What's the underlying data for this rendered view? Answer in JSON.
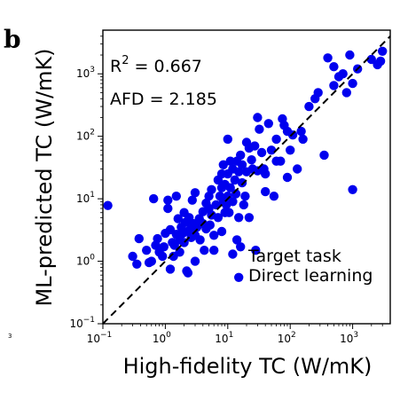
{
  "panel_label": "b",
  "edge_mark": "3",
  "chart_data": {
    "type": "scatter",
    "xlabel": "High-fidelity TC (W/mK)",
    "ylabel": "ML-predicted TC (W/mK)",
    "x_scale": "log",
    "y_scale": "log",
    "xlim": [
      0.1,
      4000
    ],
    "ylim": [
      0.1,
      5000
    ],
    "ticks": [
      {
        "base": "10",
        "exp": "−1",
        "value": 0.1
      },
      {
        "base": "10",
        "exp": "0",
        "value": 1
      },
      {
        "base": "10",
        "exp": "1",
        "value": 10
      },
      {
        "base": "10",
        "exp": "2",
        "value": 100
      },
      {
        "base": "10",
        "exp": "3",
        "value": 1000
      }
    ],
    "grid": false,
    "reference_line": "y = x",
    "annotations": {
      "r2_prefix": "R",
      "r2_exp": "2",
      "r2_value": " = 0.667",
      "afd": "AFD = 2.185"
    },
    "legend": {
      "placement": "lower-right",
      "line1": "Target task",
      "line2": "Direct learning"
    },
    "series": [
      {
        "color": "#0000ee",
        "points": [
          [
            0.12,
            7.8
          ],
          [
            0.3,
            1.2
          ],
          [
            0.35,
            0.9
          ],
          [
            0.38,
            2.3
          ],
          [
            0.5,
            1.5
          ],
          [
            0.55,
            0.95
          ],
          [
            0.6,
            1.0
          ],
          [
            0.65,
            10.0
          ],
          [
            0.7,
            1.8
          ],
          [
            0.75,
            2.3
          ],
          [
            0.8,
            1.4
          ],
          [
            0.9,
            1.2
          ],
          [
            0.95,
            1.7
          ],
          [
            1.0,
            2.8
          ],
          [
            1.1,
            9.5
          ],
          [
            1.1,
            7.0
          ],
          [
            1.2,
            3.2
          ],
          [
            1.2,
            0.75
          ],
          [
            1.3,
            2.0
          ],
          [
            1.35,
            1.2
          ],
          [
            1.4,
            1.8
          ],
          [
            1.5,
            11.0
          ],
          [
            1.5,
            2.7
          ],
          [
            1.6,
            4.8
          ],
          [
            1.7,
            2.2
          ],
          [
            1.7,
            1.4
          ],
          [
            1.8,
            3.5
          ],
          [
            1.9,
            2.8
          ],
          [
            2.0,
            6.0
          ],
          [
            2.0,
            2.0
          ],
          [
            2.1,
            4.2
          ],
          [
            2.2,
            0.7
          ],
          [
            2.3,
            3.0
          ],
          [
            2.4,
            5.0
          ],
          [
            2.5,
            3.2
          ],
          [
            2.6,
            2.4
          ],
          [
            2.7,
            9.5
          ],
          [
            2.8,
            4.0
          ],
          [
            3.0,
            12.5
          ],
          [
            3.0,
            1.0
          ],
          [
            3.0,
            2.6
          ],
          [
            3.2,
            3.5
          ],
          [
            3.5,
            4.8
          ],
          [
            3.6,
            2.2
          ],
          [
            4.0,
            6.2
          ],
          [
            4.0,
            4.0
          ],
          [
            4.2,
            1.5
          ],
          [
            4.5,
            8.5
          ],
          [
            4.5,
            3.3
          ],
          [
            5.0,
            11.0
          ],
          [
            5.0,
            7.0
          ],
          [
            5.2,
            3.8
          ],
          [
            5.5,
            14.0
          ],
          [
            5.5,
            5.5
          ],
          [
            6.0,
            1.5
          ],
          [
            6.0,
            2.6
          ],
          [
            6.5,
            8.0
          ],
          [
            7.0,
            5.0
          ],
          [
            7.0,
            20.0
          ],
          [
            7.5,
            11.0
          ],
          [
            8.0,
            15.0
          ],
          [
            8.0,
            25.0
          ],
          [
            8.0,
            3.0
          ],
          [
            8.5,
            9.0
          ],
          [
            8.5,
            35.0
          ],
          [
            9.0,
            17.0
          ],
          [
            9.0,
            6.0
          ],
          [
            9.5,
            8.0
          ],
          [
            10.0,
            25.0
          ],
          [
            10.0,
            90.0
          ],
          [
            10.0,
            11.0
          ],
          [
            10.5,
            6.0
          ],
          [
            11.0,
            40.0
          ],
          [
            11.0,
            15.0
          ],
          [
            12.0,
            30.0
          ],
          [
            12.0,
            9.0
          ],
          [
            12.0,
            1.3
          ],
          [
            13.0,
            20.0
          ],
          [
            13.5,
            12.0
          ],
          [
            14.0,
            40.0
          ],
          [
            14.0,
            2.2
          ],
          [
            15.0,
            27.0
          ],
          [
            15.0,
            5.0
          ],
          [
            16.0,
            50.0
          ],
          [
            16.0,
            1.7
          ],
          [
            17.0,
            35.0
          ],
          [
            17.0,
            18.0
          ],
          [
            18.0,
            8.0
          ],
          [
            19.0,
            11.0
          ],
          [
            20.0,
            27.0
          ],
          [
            20.0,
            80.0
          ],
          [
            22.0,
            65.0
          ],
          [
            22.0,
            5.0
          ],
          [
            24.0,
            42.0
          ],
          [
            25.0,
            30.0
          ],
          [
            27.0,
            70.0
          ],
          [
            28.0,
            1.5
          ],
          [
            30.0,
            200.0
          ],
          [
            30.0,
            28.0
          ],
          [
            32.0,
            130.0
          ],
          [
            35.0,
            55.0
          ],
          [
            38.0,
            30.0
          ],
          [
            40.0,
            25.0
          ],
          [
            40.0,
            13.0
          ],
          [
            45.0,
            160.0
          ],
          [
            50.0,
            60.0
          ],
          [
            55.0,
            11.0
          ],
          [
            60.0,
            90.0
          ],
          [
            60.0,
            40.0
          ],
          [
            70.0,
            40.0
          ],
          [
            75.0,
            190.0
          ],
          [
            80.0,
            150.0
          ],
          [
            90.0,
            120.0
          ],
          [
            90.0,
            22.0
          ],
          [
            100.0,
            60.0
          ],
          [
            110.0,
            105.0
          ],
          [
            130.0,
            30.0
          ],
          [
            150.0,
            120.0
          ],
          [
            160.0,
            90.0
          ],
          [
            200.0,
            300.0
          ],
          [
            250.0,
            400.0
          ],
          [
            280.0,
            500.0
          ],
          [
            350.0,
            50.0
          ],
          [
            400.0,
            1800.0
          ],
          [
            500.0,
            650.0
          ],
          [
            500.0,
            1300.0
          ],
          [
            600.0,
            900.0
          ],
          [
            700.0,
            1000.0
          ],
          [
            800.0,
            500.0
          ],
          [
            900.0,
            2000.0
          ],
          [
            1000.0,
            700.0
          ],
          [
            1000.0,
            14.0
          ],
          [
            1200.0,
            1200.0
          ],
          [
            2000.0,
            1700.0
          ],
          [
            2500.0,
            1400.0
          ],
          [
            3000.0,
            2300.0
          ],
          [
            2800.0,
            1600.0
          ],
          [
            15.0,
            0.55
          ],
          [
            2.3,
            0.65
          ]
        ]
      }
    ]
  }
}
